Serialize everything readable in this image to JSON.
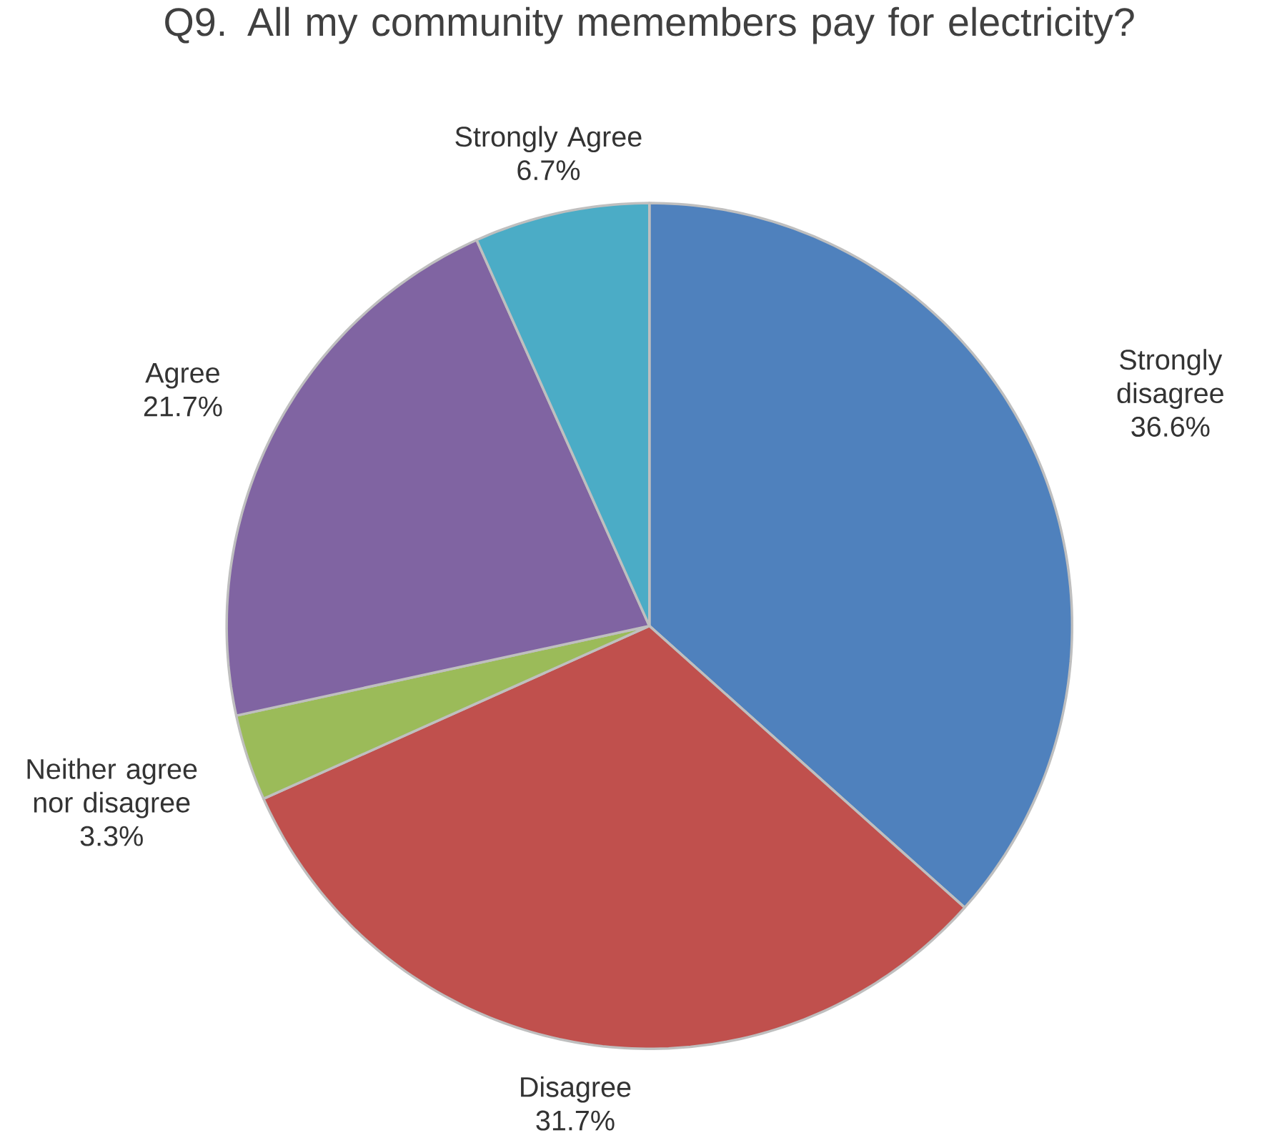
{
  "chart_data": {
    "type": "pie",
    "title": "Q9. All my community memembers pay for electricity?",
    "categories": [
      "Strongly disagree",
      "Disagree",
      "Neither agree nor disagree",
      "Agree",
      "Strongly Agree"
    ],
    "values": [
      36.6,
      31.7,
      3.3,
      21.7,
      6.7
    ],
    "colors": [
      "#4f81bd",
      "#c0504d",
      "#9bbb59",
      "#8064a2",
      "#4bacc6"
    ],
    "value_labels": [
      "36.6%",
      "31.7%",
      "3.3%",
      "21.7%",
      "6.7%"
    ]
  }
}
